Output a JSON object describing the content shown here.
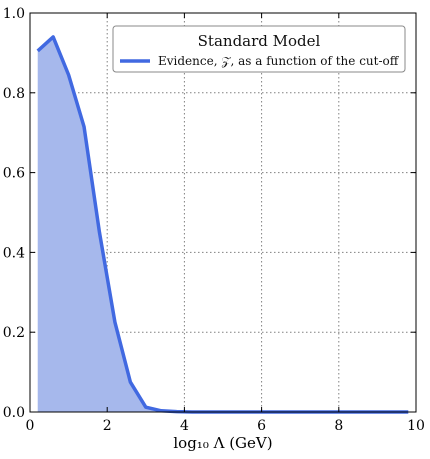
{
  "chart_data": {
    "type": "area",
    "xlabel": "log₁₀ Λ (GeV)",
    "ylabel": "",
    "xlim": [
      0,
      10
    ],
    "ylim": [
      0,
      1.0
    ],
    "xticks": [
      "0",
      "2",
      "4",
      "6",
      "8",
      "10"
    ],
    "yticks": [
      "0.0",
      "0.2",
      "0.4",
      "0.6",
      "0.8",
      "1.0"
    ],
    "grid": true,
    "legend_position": "top-right",
    "legend_title": "Standard Model",
    "series": [
      {
        "name": "Evidence, 𝒵, as a function of the cut-off",
        "color": "#4169e1",
        "fill_color": "#a6b8ec",
        "x": [
          0.2,
          0.6,
          1.0,
          1.4,
          1.8,
          2.2,
          2.6,
          3.0,
          3.4,
          3.8,
          4.2,
          4.6,
          5.0,
          5.4,
          5.8,
          6.2,
          6.6,
          7.0,
          7.4,
          7.8,
          8.2,
          8.6,
          9.0,
          9.4,
          9.8
        ],
        "y": [
          0.905,
          0.94,
          0.845,
          0.715,
          0.45,
          0.225,
          0.075,
          0.012,
          0.003,
          0.001,
          0.0,
          0.0,
          0.0,
          0.0,
          0.0,
          0.0,
          0.0,
          0.0,
          0.0,
          0.0,
          0.0,
          0.0,
          0.0,
          0.0,
          0.0
        ]
      }
    ]
  }
}
